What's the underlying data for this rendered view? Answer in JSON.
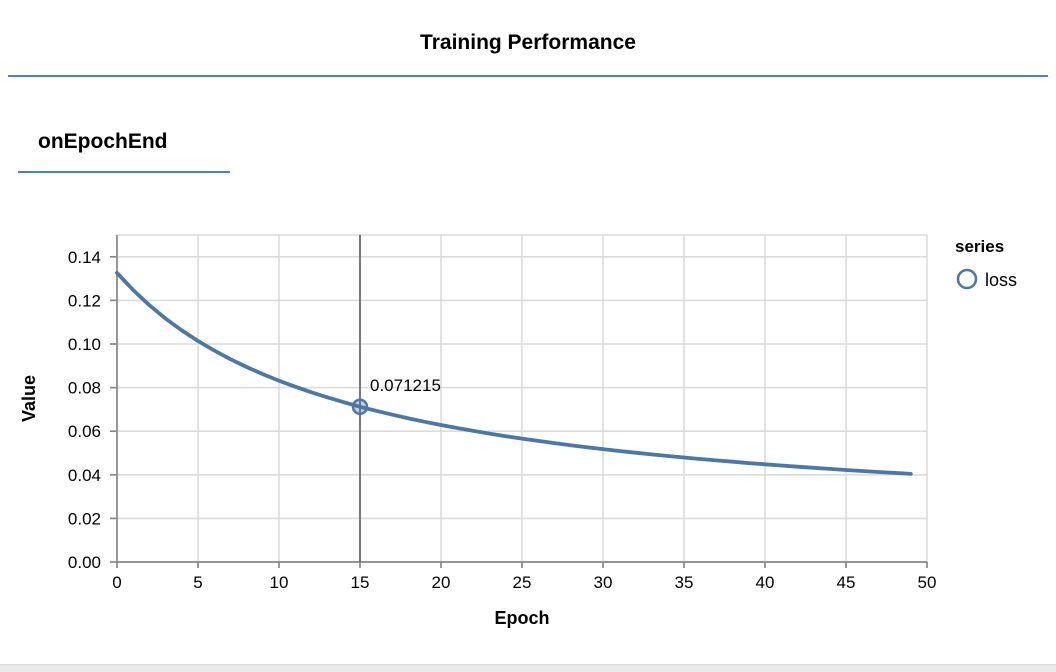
{
  "header": {
    "title": "Training Performance"
  },
  "section": {
    "title": "onEpochEnd"
  },
  "chart_data": {
    "type": "line",
    "title": "onEpochEnd",
    "xlabel": "Epoch",
    "ylabel": "Value",
    "x_range": [
      0,
      50
    ],
    "y_range": [
      0,
      0.15
    ],
    "grid": true,
    "x_ticks": [
      {
        "value": 0,
        "label": "0"
      },
      {
        "value": 5,
        "label": "5"
      },
      {
        "value": 10,
        "label": "10"
      },
      {
        "value": 15,
        "label": "15"
      },
      {
        "value": 20,
        "label": "20"
      },
      {
        "value": 25,
        "label": "25"
      },
      {
        "value": 30,
        "label": "30"
      },
      {
        "value": 35,
        "label": "35"
      },
      {
        "value": 40,
        "label": "40"
      },
      {
        "value": 45,
        "label": "45"
      },
      {
        "value": 50,
        "label": "50"
      }
    ],
    "y_ticks": [
      {
        "value": 0.0,
        "label": "0.00"
      },
      {
        "value": 0.02,
        "label": "0.02"
      },
      {
        "value": 0.04,
        "label": "0.04"
      },
      {
        "value": 0.06,
        "label": "0.06"
      },
      {
        "value": 0.08,
        "label": "0.08"
      },
      {
        "value": 0.1,
        "label": "0.10"
      },
      {
        "value": 0.12,
        "label": "0.12"
      },
      {
        "value": 0.14,
        "label": "0.14"
      }
    ],
    "legend": {
      "title": "series",
      "position": "right",
      "entries": [
        {
          "label": "loss",
          "marker": "open-circle",
          "color": "#4c78a8"
        }
      ]
    },
    "series": [
      {
        "name": "loss",
        "color": "#4c78a8",
        "x": [
          0,
          1,
          2,
          3,
          4,
          5,
          6,
          7,
          8,
          9,
          10,
          11,
          12,
          13,
          14,
          15,
          16,
          17,
          18,
          19,
          20,
          21,
          22,
          23,
          24,
          25,
          26,
          27,
          28,
          29,
          30,
          31,
          32,
          33,
          34,
          35,
          36,
          37,
          38,
          39,
          40,
          41,
          42,
          43,
          44,
          45,
          46,
          47,
          48,
          49
        ],
        "values": [
          0.132636,
          0.124709,
          0.117776,
          0.111662,
          0.106229,
          0.10137,
          0.096998,
          0.093044,
          0.089451,
          0.086171,
          0.083164,
          0.080399,
          0.077847,
          0.075485,
          0.073291,
          0.071215,
          0.069344,
          0.067561,
          0.065891,
          0.064321,
          0.062845,
          0.061453,
          0.060138,
          0.058894,
          0.057716,
          0.056599,
          0.055537,
          0.054527,
          0.053566,
          0.052649,
          0.051774,
          0.050938,
          0.050138,
          0.049373,
          0.048639,
          0.047935,
          0.04726,
          0.046611,
          0.045987,
          0.045386,
          0.044808,
          0.044251,
          0.043714,
          0.043196,
          0.042696,
          0.042212,
          0.041744,
          0.041292,
          0.040855,
          0.040431
        ]
      }
    ],
    "highlight": {
      "x": 15,
      "y": 0.071215,
      "label": "0.071215"
    },
    "colors": {
      "line": "#4c78a8",
      "grid": "#dcdcdc",
      "axis": "#888888",
      "crosshair": "#6b6b6b",
      "accent_rule": "#4a7cd6",
      "text": "#000000"
    }
  }
}
